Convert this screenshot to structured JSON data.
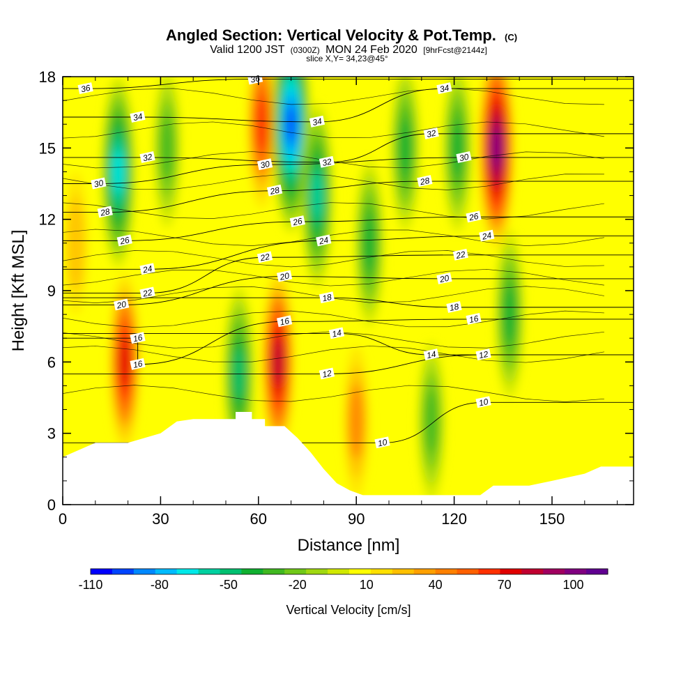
{
  "header": {
    "title": "Angled Section: Vertical Velocity & Pot.Temp.",
    "title_tag": "(C)",
    "valid_prefix": "Valid 1200 JST",
    "valid_z": "(0300Z)",
    "valid_date": "MON 24 Feb 2020",
    "forecast": "[9hrFcst@2144z]",
    "slice": "slice X,Y= 34,23@45°"
  },
  "chart_data": {
    "type": "heatmap",
    "title": "Angled Section: Vertical Velocity & Pot.Temp.",
    "xlabel": "Distance [nm]",
    "ylabel": "Height [Kft MSL]",
    "xlim": [
      0,
      175
    ],
    "ylim": [
      0,
      18
    ],
    "x_ticks": [
      0,
      30,
      60,
      90,
      120,
      150
    ],
    "x_tick_labels": [
      "0",
      "30",
      "60",
      "90",
      "120",
      "150"
    ],
    "y_ticks": [
      0,
      3,
      6,
      9,
      12,
      15,
      18
    ],
    "y_tick_labels": [
      "0",
      "3",
      "6",
      "9",
      "12",
      "15",
      "18"
    ],
    "colorbar": {
      "label": "Vertical Velocity [cm/s]",
      "tick_labels": [
        "-110",
        "-80",
        "-50",
        "-20",
        "10",
        "40",
        "70",
        "100"
      ],
      "tick_values": [
        -110,
        -80,
        -50,
        -20,
        10,
        40,
        70,
        100
      ],
      "range": [
        -110,
        115
      ],
      "colors": [
        "#0000ff",
        "#0044ff",
        "#0088ff",
        "#00bbff",
        "#00e8e8",
        "#00d0a0",
        "#00c070",
        "#10b030",
        "#40b820",
        "#70c818",
        "#a0d810",
        "#d0e800",
        "#ffff00",
        "#ffe000",
        "#ffc000",
        "#ffa000",
        "#ff8000",
        "#ff6000",
        "#ff3000",
        "#e00000",
        "#c00030",
        "#a00060",
        "#800080",
        "#600090"
      ]
    },
    "terrain_kft": [
      [
        0,
        2.0
      ],
      [
        5,
        2.3
      ],
      [
        10,
        2.6
      ],
      [
        20,
        2.6
      ],
      [
        30,
        3.0
      ],
      [
        35,
        3.5
      ],
      [
        40,
        3.6
      ],
      [
        53,
        3.6
      ],
      [
        53,
        3.9
      ],
      [
        58,
        3.9
      ],
      [
        58,
        3.6
      ],
      [
        62,
        3.6
      ],
      [
        62,
        3.3
      ],
      [
        68,
        3.3
      ],
      [
        72,
        2.8
      ],
      [
        76,
        2.2
      ],
      [
        80,
        1.5
      ],
      [
        84,
        0.9
      ],
      [
        88,
        0.6
      ],
      [
        92,
        0.4
      ],
      [
        128,
        0.4
      ],
      [
        132,
        0.8
      ],
      [
        143,
        0.8
      ],
      [
        150,
        1.0
      ],
      [
        160,
        1.3
      ],
      [
        165,
        1.6
      ],
      [
        175,
        1.6
      ]
    ],
    "vertical_velocity_features": [
      {
        "x": 4,
        "y": 11,
        "value": 30
      },
      {
        "x": 19,
        "y": 6,
        "value": 70
      },
      {
        "x": 17,
        "y": 14,
        "value": -70
      },
      {
        "x": 32,
        "y": 15,
        "value": -30
      },
      {
        "x": 54,
        "y": 5.5,
        "value": -50
      },
      {
        "x": 61,
        "y": 16,
        "value": 60
      },
      {
        "x": 66,
        "y": 6,
        "value": 80
      },
      {
        "x": 70,
        "y": 16,
        "value": -100
      },
      {
        "x": 78,
        "y": 13,
        "value": -60
      },
      {
        "x": 90,
        "y": 3.5,
        "value": 40
      },
      {
        "x": 94,
        "y": 11,
        "value": -40
      },
      {
        "x": 105,
        "y": 15,
        "value": -40
      },
      {
        "x": 113,
        "y": 3.5,
        "value": -25
      },
      {
        "x": 121,
        "y": 15,
        "value": -40
      },
      {
        "x": 133,
        "y": 15,
        "value": 100
      },
      {
        "x": 137,
        "y": 8,
        "value": -40
      }
    ],
    "theta_contours": [
      {
        "value": "10",
        "label_at": [
          129,
          4.3
        ]
      },
      {
        "value": "10",
        "label_at": [
          98,
          2.6
        ]
      },
      {
        "value": "12",
        "label_at": [
          81,
          5.5
        ]
      },
      {
        "value": "12",
        "label_at": [
          129,
          6.3
        ]
      },
      {
        "value": "14",
        "label_at": [
          84,
          7.2
        ]
      },
      {
        "value": "14",
        "label_at": [
          113,
          6.3
        ]
      },
      {
        "value": "16",
        "label_at": [
          23,
          7.0
        ]
      },
      {
        "value": "16",
        "label_at": [
          23,
          5.9
        ]
      },
      {
        "value": "16",
        "label_at": [
          68,
          7.7
        ]
      },
      {
        "value": "16",
        "label_at": [
          126,
          7.8
        ]
      },
      {
        "value": "18",
        "label_at": [
          81,
          8.7
        ]
      },
      {
        "value": "18",
        "label_at": [
          120,
          8.3
        ]
      },
      {
        "value": "20",
        "label_at": [
          18,
          8.4
        ]
      },
      {
        "value": "20",
        "label_at": [
          68,
          9.6
        ]
      },
      {
        "value": "20",
        "label_at": [
          117,
          9.5
        ]
      },
      {
        "value": "22",
        "label_at": [
          26,
          8.9
        ]
      },
      {
        "value": "22",
        "label_at": [
          62,
          10.4
        ]
      },
      {
        "value": "22",
        "label_at": [
          122,
          10.5
        ]
      },
      {
        "value": "24",
        "label_at": [
          26,
          9.9
        ]
      },
      {
        "value": "24",
        "label_at": [
          80,
          11.1
        ]
      },
      {
        "value": "24",
        "label_at": [
          130,
          11.3
        ]
      },
      {
        "value": "26",
        "label_at": [
          19,
          11.1
        ]
      },
      {
        "value": "26",
        "label_at": [
          72,
          11.9
        ]
      },
      {
        "value": "26",
        "label_at": [
          126,
          12.1
        ]
      },
      {
        "value": "28",
        "label_at": [
          13,
          12.3
        ]
      },
      {
        "value": "28",
        "label_at": [
          65,
          13.2
        ]
      },
      {
        "value": "28",
        "label_at": [
          111,
          13.6
        ]
      },
      {
        "value": "30",
        "label_at": [
          11,
          13.5
        ]
      },
      {
        "value": "30",
        "label_at": [
          62,
          14.3
        ]
      },
      {
        "value": "30",
        "label_at": [
          123,
          14.6
        ]
      },
      {
        "value": "32",
        "label_at": [
          26,
          14.6
        ]
      },
      {
        "value": "32",
        "label_at": [
          81,
          14.4
        ]
      },
      {
        "value": "32",
        "label_at": [
          113,
          15.6
        ]
      },
      {
        "value": "34",
        "label_at": [
          23,
          16.3
        ]
      },
      {
        "value": "34",
        "label_at": [
          78,
          16.1
        ]
      },
      {
        "value": "34",
        "label_at": [
          117,
          17.5
        ]
      },
      {
        "value": "36",
        "label_at": [
          7,
          17.5
        ]
      },
      {
        "value": "36",
        "label_at": [
          59,
          17.9
        ]
      }
    ]
  }
}
